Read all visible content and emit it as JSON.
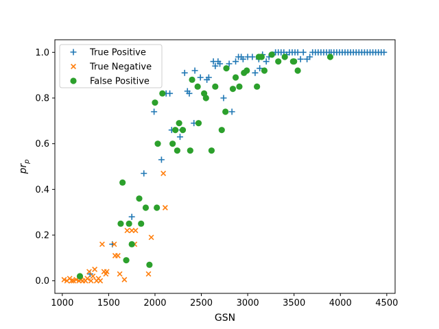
{
  "chart_data": {
    "type": "scatter",
    "title": "",
    "xlabel": "GSN",
    "ylabel_main": "pr",
    "ylabel_sub": "p",
    "xlim": [
      920,
      4590
    ],
    "ylim": [
      -0.055,
      1.055
    ],
    "xticks": [
      1000,
      1500,
      2000,
      2500,
      3000,
      3500,
      4000,
      4500
    ],
    "xtick_labels": [
      "1000",
      "1500",
      "2000",
      "2500",
      "3000",
      "3500",
      "4000",
      "4500"
    ],
    "yticks": [
      0.0,
      0.2,
      0.4,
      0.6,
      0.8,
      1.0
    ],
    "ytick_labels": [
      "0.0",
      "0.2",
      "0.4",
      "0.6",
      "0.8",
      "1.0"
    ],
    "grid": false,
    "legend_position": "top-left",
    "series": [
      {
        "name": "True Positive",
        "marker": "plus",
        "color": "#1f77b4",
        "points": [
          [
            1300,
            0.03
          ],
          [
            1540,
            0.16
          ],
          [
            1750,
            0.28
          ],
          [
            1880,
            0.47
          ],
          [
            1990,
            0.74
          ],
          [
            2070,
            0.53
          ],
          [
            2120,
            0.82
          ],
          [
            2160,
            0.82
          ],
          [
            2180,
            0.66
          ],
          [
            2270,
            0.63
          ],
          [
            2290,
            0.66
          ],
          [
            2320,
            0.91
          ],
          [
            2350,
            0.83
          ],
          [
            2370,
            0.82
          ],
          [
            2420,
            0.69
          ],
          [
            2430,
            0.92
          ],
          [
            2490,
            0.89
          ],
          [
            2560,
            0.88
          ],
          [
            2580,
            0.89
          ],
          [
            2630,
            0.96
          ],
          [
            2650,
            0.94
          ],
          [
            2680,
            0.96
          ],
          [
            2700,
            0.95
          ],
          [
            2740,
            0.8
          ],
          [
            2800,
            0.95
          ],
          [
            2830,
            0.74
          ],
          [
            2870,
            0.96
          ],
          [
            2900,
            0.98
          ],
          [
            2930,
            0.98
          ],
          [
            2950,
            0.97
          ],
          [
            3000,
            0.98
          ],
          [
            3050,
            0.98
          ],
          [
            3080,
            0.91
          ],
          [
            3120,
            0.97
          ],
          [
            3130,
            0.93
          ],
          [
            3160,
            0.99
          ],
          [
            3200,
            0.96
          ],
          [
            3230,
            0.98
          ],
          [
            3270,
            0.99
          ],
          [
            3300,
            1.0
          ],
          [
            3330,
            1.0
          ],
          [
            3360,
            1.0
          ],
          [
            3390,
            1.0
          ],
          [
            3420,
            0.99
          ],
          [
            3450,
            1.0
          ],
          [
            3480,
            1.0
          ],
          [
            3510,
            1.0
          ],
          [
            3540,
            1.0
          ],
          [
            3570,
            0.97
          ],
          [
            3600,
            1.0
          ],
          [
            3640,
            0.97
          ],
          [
            3670,
            0.98
          ],
          [
            3700,
            1.0
          ],
          [
            3730,
            1.0
          ],
          [
            3760,
            1.0
          ],
          [
            3790,
            1.0
          ],
          [
            3820,
            1.0
          ],
          [
            3850,
            1.0
          ],
          [
            3880,
            1.0
          ],
          [
            3900,
            1.0
          ],
          [
            3930,
            1.0
          ],
          [
            3960,
            1.0
          ],
          [
            3990,
            1.0
          ],
          [
            4020,
            1.0
          ],
          [
            4050,
            1.0
          ],
          [
            4080,
            1.0
          ],
          [
            4110,
            1.0
          ],
          [
            4140,
            1.0
          ],
          [
            4170,
            1.0
          ],
          [
            4200,
            1.0
          ],
          [
            4230,
            1.0
          ],
          [
            4260,
            1.0
          ],
          [
            4290,
            1.0
          ],
          [
            4320,
            1.0
          ],
          [
            4350,
            1.0
          ],
          [
            4380,
            1.0
          ],
          [
            4410,
            1.0
          ],
          [
            4440,
            1.0
          ],
          [
            4470,
            1.0
          ]
        ]
      },
      {
        "name": "True Negative",
        "marker": "x",
        "color": "#ff7f0e",
        "points": [
          [
            1020,
            0.005
          ],
          [
            1050,
            0.0
          ],
          [
            1080,
            0.01
          ],
          [
            1100,
            0.0
          ],
          [
            1120,
            0.0
          ],
          [
            1150,
            0.005
          ],
          [
            1180,
            0.0
          ],
          [
            1200,
            0.005
          ],
          [
            1220,
            0.0
          ],
          [
            1250,
            0.0
          ],
          [
            1270,
            0.01
          ],
          [
            1290,
            0.04
          ],
          [
            1310,
            0.0
          ],
          [
            1330,
            0.02
          ],
          [
            1350,
            0.05
          ],
          [
            1370,
            0.0
          ],
          [
            1390,
            0.01
          ],
          [
            1410,
            0.0
          ],
          [
            1430,
            0.16
          ],
          [
            1450,
            0.04
          ],
          [
            1470,
            0.03
          ],
          [
            1480,
            0.04
          ],
          [
            1560,
            0.16
          ],
          [
            1570,
            0.11
          ],
          [
            1600,
            0.11
          ],
          [
            1620,
            0.03
          ],
          [
            1670,
            0.005
          ],
          [
            1700,
            0.22
          ],
          [
            1750,
            0.22
          ],
          [
            1780,
            0.16
          ],
          [
            1790,
            0.22
          ],
          [
            1930,
            0.03
          ],
          [
            1960,
            0.19
          ],
          [
            2090,
            0.47
          ],
          [
            2110,
            0.32
          ]
        ]
      },
      {
        "name": "False Positive",
        "marker": "circle",
        "color": "#2ca02c",
        "points": [
          [
            1190,
            0.02
          ],
          [
            1630,
            0.25
          ],
          [
            1650,
            0.43
          ],
          [
            1690,
            0.09
          ],
          [
            1720,
            0.25
          ],
          [
            1750,
            0.16
          ],
          [
            1830,
            0.36
          ],
          [
            1850,
            0.25
          ],
          [
            1900,
            0.32
          ],
          [
            1940,
            0.07
          ],
          [
            2000,
            0.78
          ],
          [
            2020,
            0.32
          ],
          [
            2030,
            0.6
          ],
          [
            2080,
            0.82
          ],
          [
            2190,
            0.6
          ],
          [
            2220,
            0.66
          ],
          [
            2240,
            0.57
          ],
          [
            2260,
            0.69
          ],
          [
            2300,
            0.66
          ],
          [
            2380,
            0.57
          ],
          [
            2400,
            0.88
          ],
          [
            2460,
            0.85
          ],
          [
            2470,
            0.69
          ],
          [
            2530,
            0.82
          ],
          [
            2550,
            0.8
          ],
          [
            2610,
            0.57
          ],
          [
            2650,
            0.85
          ],
          [
            2720,
            0.66
          ],
          [
            2760,
            0.74
          ],
          [
            2770,
            0.93
          ],
          [
            2840,
            0.84
          ],
          [
            2870,
            0.89
          ],
          [
            2910,
            0.85
          ],
          [
            2960,
            0.91
          ],
          [
            2990,
            0.92
          ],
          [
            3100,
            0.85
          ],
          [
            3120,
            0.98
          ],
          [
            3150,
            0.98
          ],
          [
            3180,
            0.92
          ],
          [
            3260,
            0.99
          ],
          [
            3330,
            0.96
          ],
          [
            3400,
            0.98
          ],
          [
            3490,
            0.96
          ],
          [
            3500,
            0.96
          ],
          [
            3540,
            0.92
          ],
          [
            3890,
            0.98
          ]
        ]
      }
    ]
  }
}
